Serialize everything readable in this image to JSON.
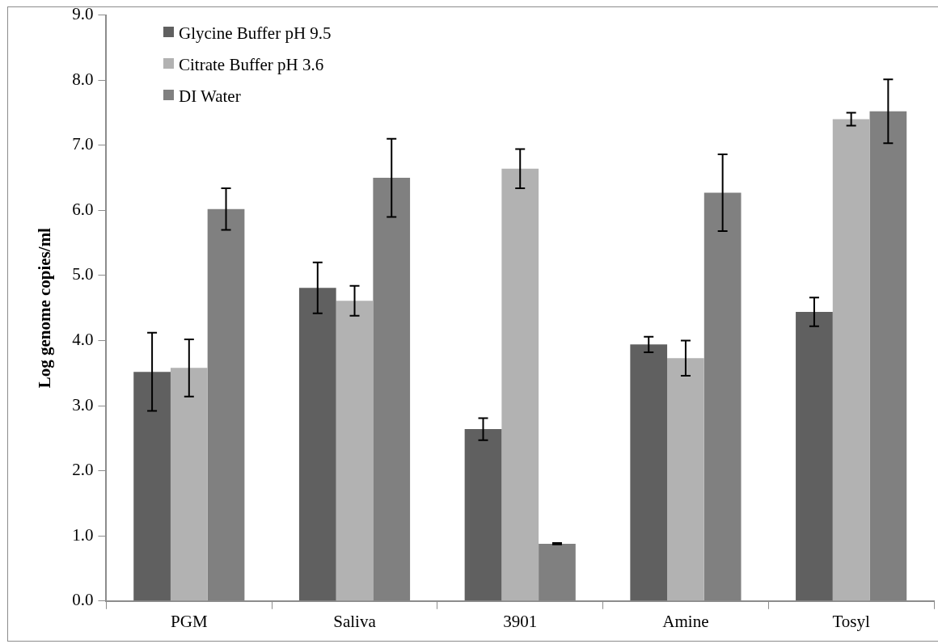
{
  "chart_data": {
    "type": "bar",
    "ylabel": "Log genome copies/ml",
    "categories": [
      "PGM",
      "Saliva",
      "3901",
      "Amine",
      "Tosyl"
    ],
    "series": [
      {
        "name": "Glycine Buffer pH 9.5",
        "color": "#606060",
        "values": [
          3.52,
          4.81,
          2.64,
          3.94,
          4.44
        ],
        "errors": [
          0.6,
          0.39,
          0.17,
          0.12,
          0.22
        ]
      },
      {
        "name": "Citrate Buffer pH 3.6",
        "color": "#b2b2b2",
        "values": [
          3.58,
          4.61,
          6.64,
          3.73,
          7.4
        ],
        "errors": [
          0.44,
          0.23,
          0.3,
          0.27,
          0.1
        ]
      },
      {
        "name": "DI Water",
        "color": "#808080",
        "values": [
          6.02,
          6.5,
          0.88,
          6.27,
          7.52
        ],
        "errors": [
          0.32,
          0.6,
          0.01,
          0.59,
          0.49
        ]
      }
    ],
    "ylim": [
      0,
      9
    ],
    "yticks": [
      {
        "value": 0,
        "label": "0.0"
      },
      {
        "value": 1,
        "label": "1.0"
      },
      {
        "value": 2,
        "label": "2.0"
      },
      {
        "value": 3,
        "label": "3.0"
      },
      {
        "value": 4,
        "label": "4.0"
      },
      {
        "value": 5,
        "label": "5.0"
      },
      {
        "value": 6,
        "label": "6.0"
      },
      {
        "value": 7,
        "label": "7.0"
      },
      {
        "value": 8,
        "label": "8.0"
      },
      {
        "value": 9,
        "label": "9.0"
      }
    ],
    "grid": false,
    "legend": "top left"
  }
}
